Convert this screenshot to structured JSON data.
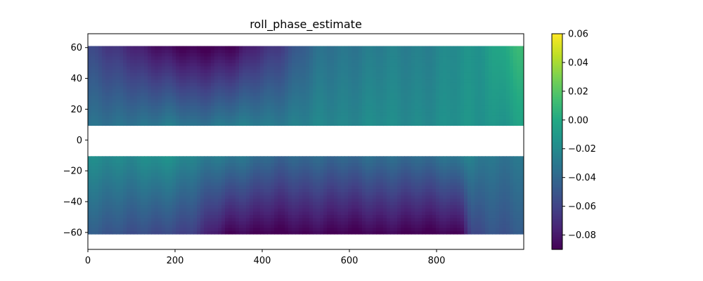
{
  "chart_data": {
    "type": "heatmap",
    "title": "roll_phase_estimate",
    "xlabel": "",
    "ylabel": "",
    "xlim": [
      0,
      1000
    ],
    "ylim": [
      -71,
      69
    ],
    "x_ticks": [
      "0",
      "200",
      "400",
      "600",
      "800"
    ],
    "x_tick_values": [
      0,
      200,
      400,
      600,
      800
    ],
    "y_ticks": [
      "60",
      "40",
      "20",
      "0",
      "−20",
      "−40",
      "−60"
    ],
    "y_tick_values": [
      60,
      40,
      20,
      0,
      -20,
      -40,
      -60
    ],
    "colormap": "viridis",
    "colorbar": {
      "min": -0.09,
      "max": 0.06,
      "ticks": [
        "0.06",
        "0.04",
        "0.02",
        "0.00",
        "−0.02",
        "−0.04",
        "−0.06",
        "−0.08"
      ],
      "tick_values": [
        0.06,
        0.04,
        0.02,
        0.0,
        -0.02,
        -0.04,
        -0.06,
        -0.08
      ]
    },
    "bands": [
      {
        "name": "upper",
        "y_range": [
          9.5,
          61
        ],
        "x": [
          0,
          100,
          140,
          200,
          240,
          280,
          340,
          380,
          440,
          500,
          540,
          600,
          660,
          700,
          760,
          800,
          860,
          900,
          960,
          1000
        ],
        "value_bottom": [
          -0.036,
          -0.03,
          -0.032,
          -0.028,
          -0.033,
          -0.03,
          -0.028,
          -0.027,
          -0.026,
          -0.025,
          -0.022,
          -0.02,
          -0.018,
          -0.02,
          -0.018,
          -0.017,
          -0.016,
          -0.014,
          -0.01,
          -0.005
        ],
        "value_top": [
          -0.06,
          -0.072,
          -0.083,
          -0.09,
          -0.09,
          -0.09,
          -0.09,
          -0.076,
          -0.062,
          -0.045,
          -0.035,
          -0.03,
          -0.028,
          -0.027,
          -0.025,
          -0.022,
          -0.018,
          -0.013,
          0.005,
          0.01
        ]
      },
      {
        "name": "lower",
        "y_range": [
          -61,
          -10.5
        ],
        "x": [
          0,
          100,
          160,
          200,
          240,
          280,
          320,
          380,
          440,
          500,
          560,
          600,
          640,
          680,
          720,
          760,
          800,
          860,
          880,
          920,
          1000
        ],
        "value_top": [
          -0.02,
          -0.018,
          -0.016,
          -0.018,
          -0.022,
          -0.026,
          -0.03,
          -0.035,
          -0.04,
          -0.04,
          -0.04,
          -0.038,
          -0.036,
          -0.038,
          -0.038,
          -0.036,
          -0.034,
          -0.03,
          -0.026,
          -0.03,
          -0.032
        ],
        "value_bottom": [
          -0.048,
          -0.052,
          -0.058,
          -0.06,
          -0.062,
          -0.075,
          -0.09,
          -0.09,
          -0.09,
          -0.09,
          -0.09,
          -0.09,
          -0.09,
          -0.09,
          -0.09,
          -0.09,
          -0.09,
          -0.09,
          -0.06,
          -0.05,
          -0.048
        ]
      }
    ]
  }
}
